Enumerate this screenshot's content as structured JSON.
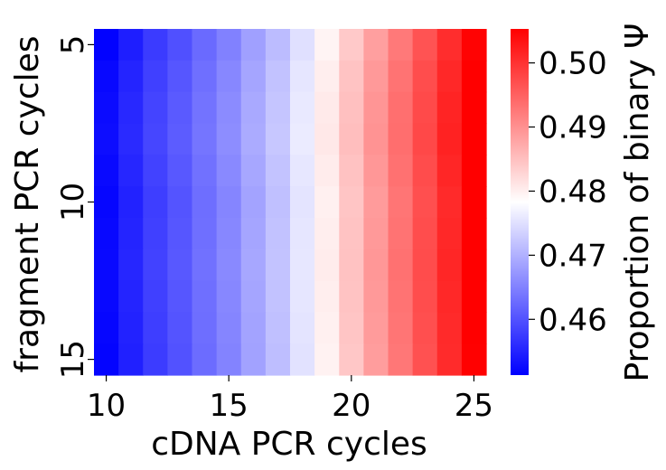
{
  "chart_data": {
    "type": "heatmap",
    "title": "",
    "xlabel": "cDNA PCR cycles",
    "ylabel": "fragment PCR cycles",
    "colorbar_label": "Proportion of binary Ψ",
    "x": [
      10,
      11,
      12,
      13,
      14,
      15,
      16,
      17,
      18,
      19,
      20,
      21,
      22,
      23,
      24,
      25
    ],
    "y": [
      5,
      6,
      7,
      8,
      9,
      10,
      11,
      12,
      13,
      14,
      15
    ],
    "x_ticks": [
      "10",
      "15",
      "20",
      "25"
    ],
    "x_tick_values": [
      10,
      15,
      20,
      25
    ],
    "y_ticks": [
      "5",
      "10",
      "15"
    ],
    "y_tick_values": [
      5,
      10,
      15
    ],
    "colorbar_ticks": [
      "0.46",
      "0.47",
      "0.48",
      "0.49",
      "0.50"
    ],
    "colorbar_tick_values": [
      0.46,
      0.47,
      0.48,
      0.49,
      0.5
    ],
    "colormap": "bwr",
    "vmin": 0.4513,
    "vmax": 0.5053,
    "colors": {
      "low": "#0000ff",
      "mid": "#ffffff",
      "high": "#ff0000"
    },
    "column_values": [
      0.4515,
      0.4545,
      0.4575,
      0.4598,
      0.4625,
      0.465,
      0.4682,
      0.4712,
      0.475,
      0.4795,
      0.484,
      0.4885,
      0.4925,
      0.4965,
      0.5005,
      0.505
    ],
    "row_adjust": [
      0.0,
      0.0006,
      0.001,
      0.0012,
      0.0008,
      0.0004,
      0.0006,
      0.0008,
      0.0006,
      0.0004,
      0.0002
    ],
    "z": []
  }
}
